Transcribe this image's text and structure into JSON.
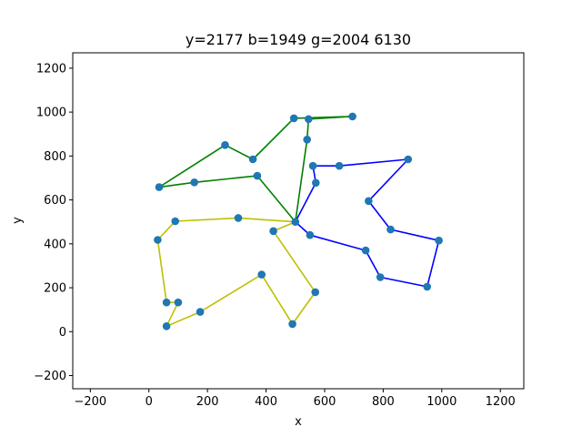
{
  "chart_data": {
    "type": "scatter",
    "title": "y=2177 b=1949 g=2004 6130",
    "xlabel": "x",
    "ylabel": "y",
    "xlim": [
      -260,
      1280
    ],
    "ylim": [
      -260,
      1270
    ],
    "xticks": [
      -200,
      0,
      200,
      400,
      600,
      800,
      1000,
      1200
    ],
    "yticks": [
      -200,
      0,
      200,
      400,
      600,
      800,
      1000,
      1200
    ],
    "grid": false,
    "point_color": "#1f77b4",
    "points": [
      [
        500,
        500
      ],
      [
        550,
        440
      ],
      [
        740,
        370
      ],
      [
        790,
        248
      ],
      [
        950,
        205
      ],
      [
        990,
        415
      ],
      [
        825,
        465
      ],
      [
        750,
        595
      ],
      [
        885,
        785
      ],
      [
        650,
        755
      ],
      [
        560,
        755
      ],
      [
        570,
        678
      ],
      [
        540,
        875
      ],
      [
        545,
        968
      ],
      [
        495,
        972
      ],
      [
        695,
        980
      ],
      [
        260,
        850
      ],
      [
        355,
        785
      ],
      [
        370,
        710
      ],
      [
        155,
        680
      ],
      [
        35,
        658
      ],
      [
        305,
        518
      ],
      [
        90,
        503
      ],
      [
        30,
        418
      ],
      [
        425,
        458
      ],
      [
        568,
        180
      ],
      [
        385,
        260
      ],
      [
        490,
        35
      ],
      [
        175,
        90
      ],
      [
        100,
        133
      ],
      [
        60,
        133
      ],
      [
        60,
        25
      ]
    ],
    "series": [
      {
        "color": "#0000ff",
        "path": [
          [
            500,
            500
          ],
          [
            550,
            440
          ],
          [
            740,
            370
          ],
          [
            790,
            248
          ],
          [
            950,
            205
          ],
          [
            990,
            415
          ],
          [
            825,
            465
          ],
          [
            750,
            595
          ],
          [
            885,
            785
          ],
          [
            650,
            755
          ],
          [
            560,
            755
          ],
          [
            570,
            678
          ],
          [
            500,
            500
          ]
        ]
      },
      {
        "color": "#008000",
        "path": [
          [
            500,
            500
          ],
          [
            540,
            875
          ],
          [
            545,
            968
          ],
          [
            695,
            980
          ],
          [
            495,
            972
          ],
          [
            355,
            785
          ],
          [
            260,
            850
          ],
          [
            35,
            658
          ],
          [
            155,
            680
          ],
          [
            370,
            710
          ],
          [
            500,
            500
          ]
        ]
      },
      {
        "color": "#bfbf00",
        "path": [
          [
            500,
            500
          ],
          [
            305,
            518
          ],
          [
            90,
            503
          ],
          [
            30,
            418
          ],
          [
            60,
            133
          ],
          [
            100,
            133
          ],
          [
            60,
            25
          ],
          [
            175,
            90
          ],
          [
            385,
            260
          ],
          [
            490,
            35
          ],
          [
            568,
            180
          ],
          [
            425,
            458
          ],
          [
            500,
            500
          ]
        ]
      }
    ]
  }
}
